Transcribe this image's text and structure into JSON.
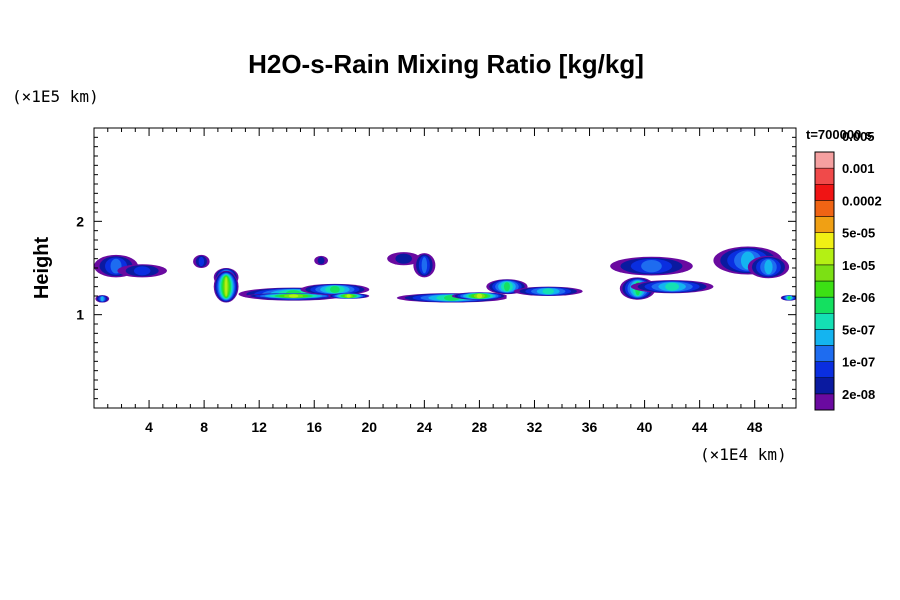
{
  "chart_data": {
    "type": "heatmap",
    "title": "H2O-s-Rain Mixing Ratio [kg/kg]",
    "ylabel": "Height",
    "y_unit": "(×1E5 km)",
    "x_unit": "(×1E4 km)",
    "time_label": "t=700000 s",
    "xlim": [
      0,
      51
    ],
    "ylim": [
      0,
      3
    ],
    "x_ticks": [
      "4",
      "8",
      "12",
      "16",
      "20",
      "24",
      "28",
      "32",
      "36",
      "40",
      "44",
      "48"
    ],
    "y_ticks": [
      "1",
      "2"
    ],
    "legend_colors": [
      "#6a0aa0",
      "#0a1aa0",
      "#0a2ee0",
      "#1e6cf0",
      "#14b4f0",
      "#14e0b4",
      "#14e060",
      "#3ce014",
      "#7ce014",
      "#b4f014",
      "#f0f014",
      "#f0a014",
      "#f06414",
      "#f01414",
      "#f04a4a",
      "#f5a0a0"
    ],
    "legend_labels": [
      "2e-08",
      "1e-07",
      "5e-07",
      "2e-06",
      "1e-05",
      "5e-05",
      "0.0002",
      "0.001",
      "0.005"
    ],
    "blobs": [
      {
        "x": 1.6,
        "y": 1.52,
        "rx": 1.6,
        "ry": 0.12,
        "level": 3
      },
      {
        "x": 3.5,
        "y": 1.47,
        "rx": 1.8,
        "ry": 0.07,
        "level": 2
      },
      {
        "x": 0.6,
        "y": 1.17,
        "rx": 0.5,
        "ry": 0.04,
        "level": 4
      },
      {
        "x": 7.8,
        "y": 1.57,
        "rx": 0.6,
        "ry": 0.07,
        "level": 2
      },
      {
        "x": 9.6,
        "y": 1.4,
        "rx": 0.9,
        "ry": 0.1,
        "level": 6
      },
      {
        "x": 9.6,
        "y": 1.3,
        "rx": 0.9,
        "ry": 0.17,
        "level": 9
      },
      {
        "x": 14.5,
        "y": 1.22,
        "rx": 4.0,
        "ry": 0.07,
        "level": 6
      },
      {
        "x": 14.5,
        "y": 1.2,
        "rx": 3.5,
        "ry": 0.03,
        "level": 9
      },
      {
        "x": 17.5,
        "y": 1.27,
        "rx": 2.5,
        "ry": 0.06,
        "level": 6
      },
      {
        "x": 18.5,
        "y": 1.2,
        "rx": 1.5,
        "ry": 0.03,
        "level": 9
      },
      {
        "x": 16.5,
        "y": 1.58,
        "rx": 0.5,
        "ry": 0.05,
        "level": 1
      },
      {
        "x": 22.5,
        "y": 1.6,
        "rx": 1.2,
        "ry": 0.07,
        "level": 1
      },
      {
        "x": 24.0,
        "y": 1.53,
        "rx": 0.8,
        "ry": 0.13,
        "level": 3
      },
      {
        "x": 26.0,
        "y": 1.18,
        "rx": 4.0,
        "ry": 0.05,
        "level": 6
      },
      {
        "x": 28.0,
        "y": 1.2,
        "rx": 2.0,
        "ry": 0.04,
        "level": 9
      },
      {
        "x": 30.0,
        "y": 1.3,
        "rx": 1.5,
        "ry": 0.08,
        "level": 6
      },
      {
        "x": 33.0,
        "y": 1.25,
        "rx": 2.5,
        "ry": 0.05,
        "level": 5
      },
      {
        "x": 40.5,
        "y": 1.52,
        "rx": 3.0,
        "ry": 0.1,
        "level": 3
      },
      {
        "x": 39.5,
        "y": 1.28,
        "rx": 1.3,
        "ry": 0.12,
        "level": 6
      },
      {
        "x": 42.0,
        "y": 1.3,
        "rx": 3.0,
        "ry": 0.07,
        "level": 5
      },
      {
        "x": 47.5,
        "y": 1.58,
        "rx": 2.5,
        "ry": 0.15,
        "level": 4
      },
      {
        "x": 49.0,
        "y": 1.51,
        "rx": 1.5,
        "ry": 0.12,
        "level": 4
      },
      {
        "x": 50.5,
        "y": 1.18,
        "rx": 0.6,
        "ry": 0.03,
        "level": 6
      }
    ]
  }
}
